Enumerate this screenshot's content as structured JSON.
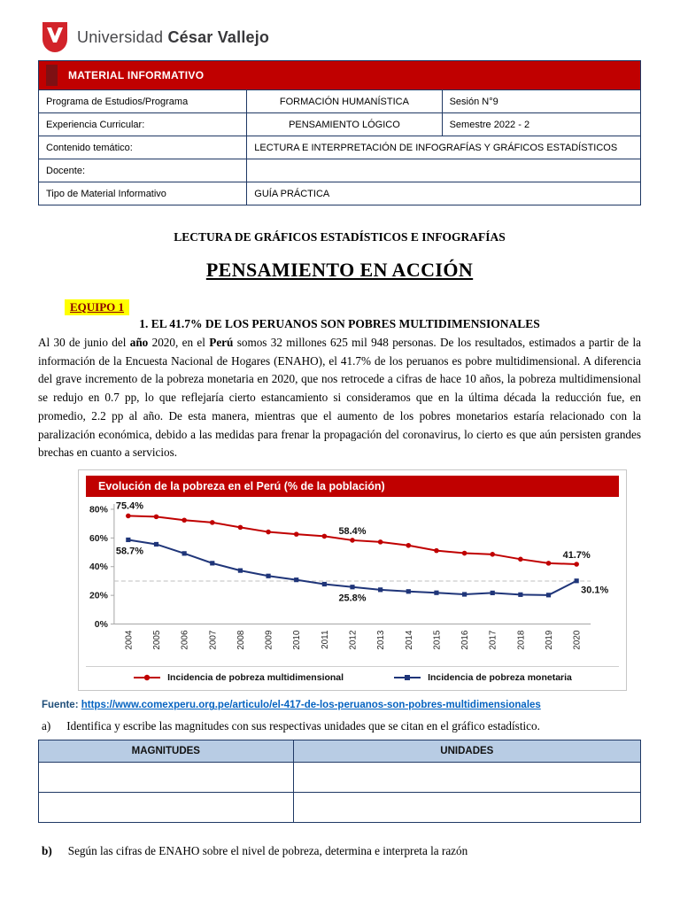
{
  "logo": {
    "brand_regular": "Universidad",
    "brand_bold": "César Vallejo"
  },
  "info_table": {
    "header": "MATERIAL INFORMATIVO",
    "rows": [
      {
        "cells": [
          {
            "t": "Programa de Estudios/Programa"
          },
          {
            "t": "FORMACIÓN HUMANÍSTICA",
            "align": "center"
          },
          {
            "t": "Sesión N°9"
          }
        ]
      },
      {
        "cells": [
          {
            "t": "Experiencia Curricular:"
          },
          {
            "t": "PENSAMIENTO LÓGICO",
            "align": "center"
          },
          {
            "t": "Semestre 2022 - 2"
          }
        ]
      },
      {
        "cells": [
          {
            "t": "Contenido temático:"
          },
          {
            "t": "LECTURA E INTERPRETACIÓN DE INFOGRAFÍAS Y GRÁFICOS ESTADÍSTICOS",
            "span": 2
          }
        ]
      },
      {
        "cells": [
          {
            "t": "Docente:"
          },
          {
            "t": "",
            "span": 2
          }
        ]
      },
      {
        "cells": [
          {
            "t": "Tipo de Material Informativo"
          },
          {
            "t": "GUÍA PRÁCTICA",
            "span": 2
          }
        ]
      }
    ]
  },
  "titles": {
    "subtitle": "LECTURA DE GRÁFICOS ESTADÍSTICOS E INFOGRAFÍAS",
    "main": "PENSAMIENTO EN ACCIÓN",
    "team_badge": "EQUIPO 1",
    "section": "1. EL 41.7% DE LOS PERUANOS SON POBRES MULTIDIMENSIONALES"
  },
  "paragraph": [
    {
      "t": "Al 30 de junio del "
    },
    {
      "t": "año",
      "b": true
    },
    {
      "t": " 2020, en el "
    },
    {
      "t": "Perú",
      "b": true
    },
    {
      "t": " somos 32 millones 625 mil 948 personas. De los resultados, estimados a partir de la información de la Encuesta Nacional de Hogares (ENAHO), el 41.7% de los peruanos es pobre multidimensional. A diferencia del grave incremento de la pobreza monetaria en 2020, que nos retrocede a cifras de hace 10 años, la pobreza multidimensional se redujo en 0.7 pp, lo que reflejaría cierto estancamiento si consideramos que en la última década la reducción fue, en promedio, 2.2 pp al año. De esta manera, mientras que el aumento de los pobres monetarios estaría relacionado con la paralización económica, debido a las medidas para frenar la propagación del coronavirus, lo cierto es que aún persisten grandes brechas en cuanto a servicios."
    }
  ],
  "chart_data": {
    "type": "line",
    "title": "Evolución de la pobreza en el Perú (% de la población)",
    "title_bg": "#c00000",
    "x": [
      2004,
      2005,
      2006,
      2007,
      2008,
      2009,
      2010,
      2011,
      2012,
      2013,
      2014,
      2015,
      2016,
      2017,
      2018,
      2019,
      2020
    ],
    "series": [
      {
        "name": "Incidencia de pobreza multidimensional",
        "color": "#c00000",
        "marker": "circle",
        "values": [
          75.4,
          74.8,
          72.4,
          70.8,
          67.4,
          64.2,
          62.6,
          61.2,
          58.4,
          57.2,
          54.8,
          51.2,
          49.4,
          48.6,
          45.2,
          42.4,
          41.7
        ]
      },
      {
        "name": "Incidencia de pobreza monetaria",
        "color": "#1f3579",
        "marker": "square",
        "values": [
          58.7,
          55.6,
          49.2,
          42.4,
          37.3,
          33.5,
          30.8,
          27.8,
          25.8,
          23.9,
          22.7,
          21.8,
          20.7,
          21.7,
          20.5,
          20.2,
          30.1
        ]
      }
    ],
    "ylim": [
      0,
      80
    ],
    "yticks": [
      0,
      20,
      40,
      60,
      80
    ],
    "reference_line": 30,
    "grid": false,
    "legend_position": "bottom",
    "annotations": [
      {
        "series": 0,
        "index": 0,
        "label": "75.4%",
        "pos": "above-left"
      },
      {
        "series": 1,
        "index": 0,
        "label": "58.7%",
        "pos": "below-left"
      },
      {
        "series": 0,
        "index": 8,
        "label": "58.4%",
        "pos": "above"
      },
      {
        "series": 1,
        "index": 8,
        "label": "25.8%",
        "pos": "below"
      },
      {
        "series": 0,
        "index": 16,
        "label": "41.7%",
        "pos": "above"
      },
      {
        "series": 1,
        "index": 16,
        "label": "30.1%",
        "pos": "below-right"
      }
    ]
  },
  "source": {
    "label": "Fuente:",
    "url": "https://www.comexperu.org.pe/articulo/el-417-de-los-peruanos-son-pobres-multidimensionales"
  },
  "question_a": {
    "marker": "a)",
    "text": "Identifica y escribe las magnitudes con sus respectivas unidades que se citan en el gráfico estadístico."
  },
  "answer_table": {
    "headers": [
      "MAGNITUDES",
      "UNIDADES"
    ],
    "empty_rows": 2
  },
  "question_b": {
    "marker": "b)",
    "text": "Según las cifras de ENAHO sobre el nivel de pobreza, determina e interpreta la razón"
  }
}
